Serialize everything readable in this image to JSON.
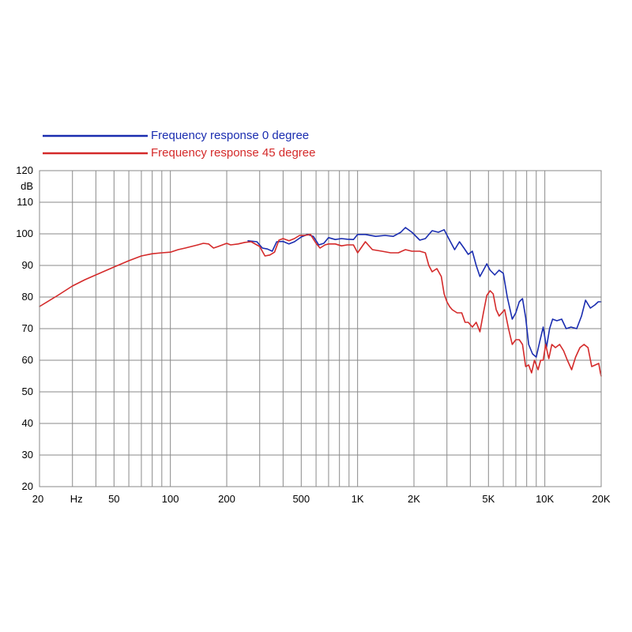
{
  "chart_data": {
    "type": "line",
    "title": "",
    "xlabel": "",
    "ylabel": "",
    "x_scale": "log",
    "xlim": [
      20,
      20000
    ],
    "ylim": [
      20,
      120
    ],
    "grid": true,
    "legend_position": "top-left",
    "x_tick_labels": [
      {
        "value": 20,
        "label": "20"
      },
      {
        "value": 50,
        "label": "50"
      },
      {
        "value": 100,
        "label": "100"
      },
      {
        "value": 200,
        "label": "200"
      },
      {
        "value": 500,
        "label": "500"
      },
      {
        "value": 1000,
        "label": "1K"
      },
      {
        "value": 2000,
        "label": "2K"
      },
      {
        "value": 5000,
        "label": "5K"
      },
      {
        "value": 10000,
        "label": "10K"
      },
      {
        "value": 20000,
        "label": "20K"
      }
    ],
    "x_unit_label": "Hz",
    "y_unit_label": "dB",
    "y_ticks": [
      20,
      30,
      40,
      50,
      60,
      70,
      80,
      90,
      100,
      110,
      120
    ],
    "series": [
      {
        "name": "Frequency response 0 degree",
        "color": "#1a2db0",
        "points": [
          [
            260,
            97.8
          ],
          [
            290,
            97.5
          ],
          [
            310,
            95.5
          ],
          [
            330,
            95.2
          ],
          [
            350,
            94.5
          ],
          [
            370,
            97.5
          ],
          [
            400,
            97.6
          ],
          [
            430,
            96.8
          ],
          [
            460,
            97.5
          ],
          [
            500,
            99
          ],
          [
            540,
            99.8
          ],
          [
            580,
            99.2
          ],
          [
            620,
            96.5
          ],
          [
            660,
            97
          ],
          [
            700,
            98.8
          ],
          [
            760,
            98.2
          ],
          [
            820,
            98.5
          ],
          [
            880,
            98.3
          ],
          [
            950,
            98.2
          ],
          [
            1000,
            99.8
          ],
          [
            1100,
            99.8
          ],
          [
            1250,
            99.2
          ],
          [
            1400,
            99.5
          ],
          [
            1550,
            99.2
          ],
          [
            1700,
            100.5
          ],
          [
            1800,
            102
          ],
          [
            1950,
            100.5
          ],
          [
            2150,
            98
          ],
          [
            2300,
            98.5
          ],
          [
            2500,
            101
          ],
          [
            2700,
            100.5
          ],
          [
            2900,
            101.3
          ],
          [
            3100,
            98
          ],
          [
            3300,
            95
          ],
          [
            3500,
            97.5
          ],
          [
            3700,
            95.5
          ],
          [
            3900,
            93.5
          ],
          [
            4100,
            94.5
          ],
          [
            4300,
            90
          ],
          [
            4500,
            86.5
          ],
          [
            4700,
            88.5
          ],
          [
            4900,
            90.5
          ],
          [
            5100,
            88.5
          ],
          [
            5400,
            87
          ],
          [
            5700,
            88.5
          ],
          [
            6000,
            87.5
          ],
          [
            6300,
            80
          ],
          [
            6700,
            73
          ],
          [
            7000,
            75
          ],
          [
            7300,
            78.5
          ],
          [
            7600,
            79.5
          ],
          [
            7900,
            73.5
          ],
          [
            8200,
            65
          ],
          [
            8600,
            62
          ],
          [
            9000,
            61
          ],
          [
            9400,
            66
          ],
          [
            9800,
            70.5
          ],
          [
            10200,
            64
          ],
          [
            10600,
            70
          ],
          [
            11000,
            73
          ],
          [
            11600,
            72.5
          ],
          [
            12300,
            73
          ],
          [
            13000,
            70
          ],
          [
            13800,
            70.5
          ],
          [
            14800,
            70
          ],
          [
            15700,
            74
          ],
          [
            16500,
            79
          ],
          [
            17500,
            76.5
          ],
          [
            18500,
            77.5
          ],
          [
            19300,
            78.5
          ],
          [
            20000,
            78.5
          ]
        ]
      },
      {
        "name": "Frequency response 45 degree",
        "color": "#d42a2a",
        "points": [
          [
            20,
            77
          ],
          [
            25,
            80.5
          ],
          [
            30,
            83.5
          ],
          [
            35,
            85.5
          ],
          [
            40,
            87
          ],
          [
            50,
            89.5
          ],
          [
            60,
            91.5
          ],
          [
            70,
            93
          ],
          [
            80,
            93.7
          ],
          [
            90,
            94
          ],
          [
            100,
            94.2
          ],
          [
            110,
            95
          ],
          [
            120,
            95.5
          ],
          [
            140,
            96.5
          ],
          [
            150,
            97
          ],
          [
            160,
            96.8
          ],
          [
            170,
            95.5
          ],
          [
            180,
            96
          ],
          [
            200,
            97
          ],
          [
            210,
            96.5
          ],
          [
            230,
            96.8
          ],
          [
            250,
            97.3
          ],
          [
            270,
            97.5
          ],
          [
            300,
            96
          ],
          [
            320,
            93
          ],
          [
            340,
            93.3
          ],
          [
            360,
            94.2
          ],
          [
            380,
            98
          ],
          [
            400,
            98.5
          ],
          [
            430,
            97.8
          ],
          [
            460,
            98.5
          ],
          [
            490,
            99.5
          ],
          [
            520,
            99.5
          ],
          [
            560,
            99.8
          ],
          [
            600,
            97
          ],
          [
            630,
            95.5
          ],
          [
            670,
            96.5
          ],
          [
            700,
            96.8
          ],
          [
            760,
            96.8
          ],
          [
            820,
            96.2
          ],
          [
            880,
            96.5
          ],
          [
            950,
            96.5
          ],
          [
            1000,
            94
          ],
          [
            1100,
            97.5
          ],
          [
            1200,
            95
          ],
          [
            1350,
            94.5
          ],
          [
            1500,
            94
          ],
          [
            1650,
            94
          ],
          [
            1800,
            95
          ],
          [
            1950,
            94.5
          ],
          [
            2150,
            94.5
          ],
          [
            2300,
            94
          ],
          [
            2400,
            90
          ],
          [
            2500,
            88
          ],
          [
            2650,
            89
          ],
          [
            2800,
            86.5
          ],
          [
            2900,
            81
          ],
          [
            3000,
            78.5
          ],
          [
            3100,
            77
          ],
          [
            3200,
            76
          ],
          [
            3400,
            75
          ],
          [
            3600,
            75
          ],
          [
            3750,
            72
          ],
          [
            3900,
            72
          ],
          [
            4100,
            70.5
          ],
          [
            4300,
            72
          ],
          [
            4500,
            69
          ],
          [
            4700,
            75
          ],
          [
            4900,
            80.5
          ],
          [
            5100,
            82
          ],
          [
            5300,
            81
          ],
          [
            5500,
            76
          ],
          [
            5700,
            74
          ],
          [
            5900,
            75
          ],
          [
            6100,
            76
          ],
          [
            6400,
            70
          ],
          [
            6700,
            65
          ],
          [
            7000,
            66.5
          ],
          [
            7300,
            66.5
          ],
          [
            7600,
            65
          ],
          [
            7900,
            58
          ],
          [
            8200,
            58.5
          ],
          [
            8500,
            56
          ],
          [
            8800,
            60
          ],
          [
            9200,
            57
          ],
          [
            9500,
            60
          ],
          [
            9800,
            60
          ],
          [
            10100,
            65
          ],
          [
            10500,
            60.5
          ],
          [
            10900,
            65
          ],
          [
            11400,
            64
          ],
          [
            12000,
            65
          ],
          [
            12600,
            63
          ],
          [
            13200,
            60
          ],
          [
            13900,
            57
          ],
          [
            14600,
            61
          ],
          [
            15400,
            64
          ],
          [
            16200,
            65
          ],
          [
            17000,
            64
          ],
          [
            17800,
            58
          ],
          [
            18600,
            58.5
          ],
          [
            19400,
            59
          ],
          [
            19800,
            56
          ],
          [
            20000,
            55
          ]
        ]
      }
    ]
  }
}
